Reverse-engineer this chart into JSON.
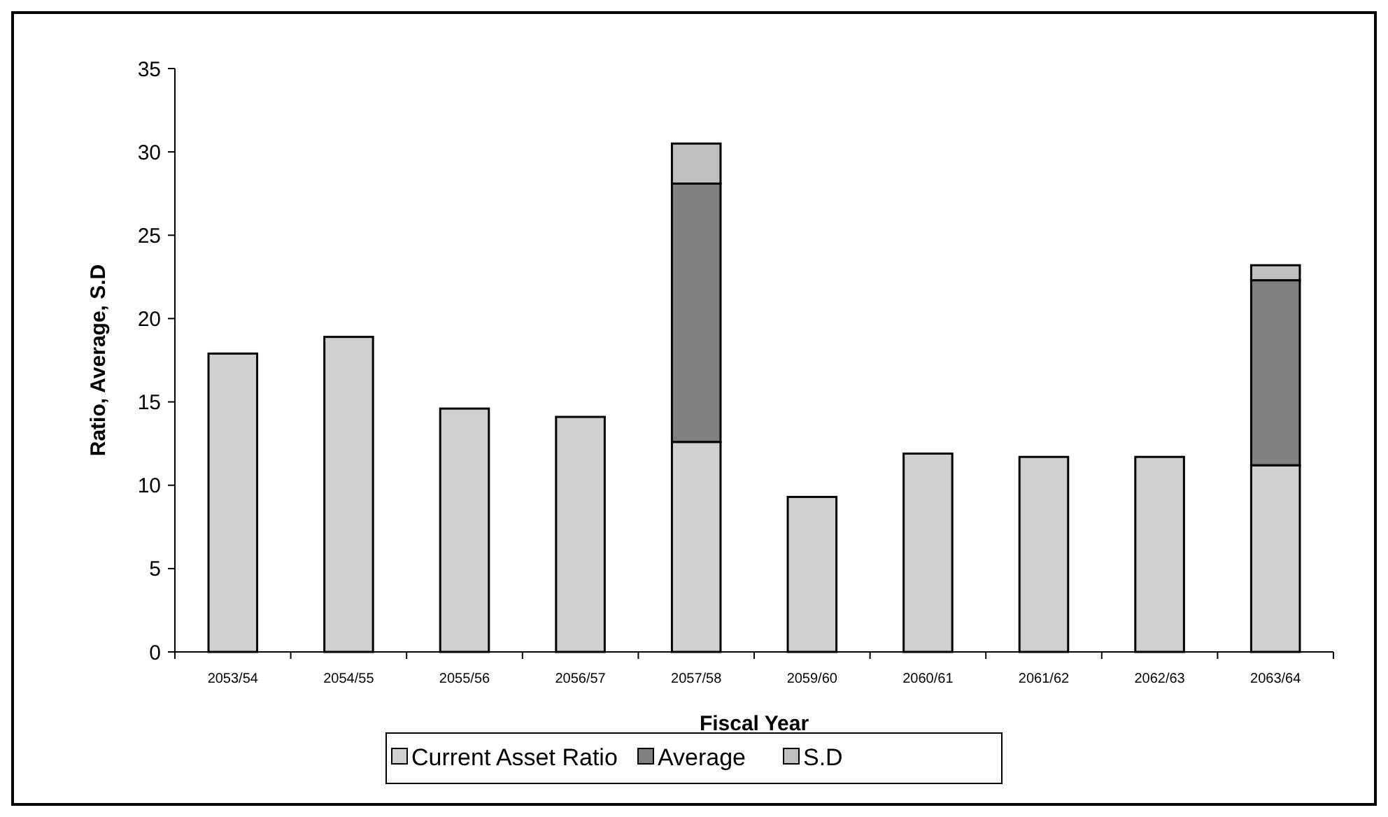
{
  "chart_data": {
    "type": "bar",
    "stacked": true,
    "xlabel": "Fiscal Year",
    "ylabel": "Ratio, Average, S.D",
    "categories": [
      "2053/54",
      "2054/55",
      "2055/56",
      "2056/57",
      "2057/58",
      "2059/60",
      "2060/61",
      "2061/62",
      "2062/63",
      "2063/64"
    ],
    "series": [
      {
        "name": "Current Asset Ratio",
        "color": "#d0d0d0",
        "values": [
          17.9,
          18.9,
          14.6,
          14.1,
          12.6,
          9.3,
          11.9,
          11.7,
          11.7,
          11.2
        ]
      },
      {
        "name": "Average",
        "color": "#808080",
        "values": [
          null,
          null,
          null,
          null,
          15.5,
          null,
          null,
          null,
          null,
          11.1
        ]
      },
      {
        "name": "S.D",
        "color": "#c0c0c0",
        "values": [
          null,
          null,
          null,
          null,
          2.4,
          null,
          null,
          null,
          null,
          0.9
        ]
      }
    ],
    "ylim": [
      0,
      35
    ],
    "yticks": [
      0,
      5,
      10,
      15,
      20,
      25,
      30,
      35
    ],
    "grid": false,
    "legend": "bottom"
  }
}
